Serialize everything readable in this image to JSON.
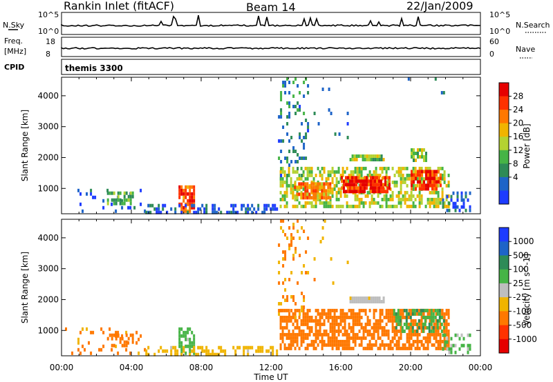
{
  "header": {
    "title": "Rankin Inlet (fitACF)",
    "beam": "Beam 14",
    "date": "22/Jan/2009"
  },
  "status_panel": {
    "nsky_label": "N.Sky",
    "nsearch_label": "N.Search",
    "nsky_ticks": [
      "10^5",
      "10^0"
    ],
    "nsearch_ticks": [
      "10^5",
      "10^0"
    ],
    "freq_label": "Freq.",
    "freq_unit": "[MHz]",
    "freq_ticks": [
      "18",
      "8"
    ],
    "nave_label": "Nave",
    "nave_ticks": [
      "60",
      "0"
    ],
    "cpid_label": "CPID",
    "cpid_value": "themis 3300"
  },
  "chart_data": [
    {
      "type": "heatmap",
      "name": "power",
      "ylabel": "Slant Range [km]",
      "xlabel": "Time UT",
      "x_ticks": [
        "00:00",
        "04:00",
        "08:00",
        "12:00",
        "16:00",
        "20:00",
        "00:00"
      ],
      "xlim_hours": [
        0,
        24
      ],
      "ylim_km": [
        180,
        4600
      ],
      "y_ticks": [
        1000,
        2000,
        3000,
        4000
      ],
      "colorbar": {
        "label": "Power [dB]",
        "ticks": [
          "28",
          "24",
          "20",
          "16",
          "12",
          "8",
          "4"
        ],
        "min": 0,
        "max": 32,
        "colors": [
          "#1e3cff",
          "#1e64c8",
          "#2e8b57",
          "#46b446",
          "#b4d232",
          "#f0b400",
          "#ff7800",
          "#ff3200",
          "#e60000"
        ]
      },
      "regions": [
        {
          "t0": 0.2,
          "t1": 4.8,
          "r0": 200,
          "r1": 1100,
          "dens": 0.1,
          "p": 5
        },
        {
          "t0": 2.6,
          "t1": 4.2,
          "r0": 400,
          "r1": 900,
          "dens": 0.55,
          "p": 12
        },
        {
          "t0": 6.7,
          "t1": 7.6,
          "r0": 200,
          "r1": 1100,
          "dens": 0.8,
          "p": 26
        },
        {
          "t0": 4.8,
          "t1": 12.4,
          "r0": 200,
          "r1": 500,
          "dens": 0.45,
          "p": 4
        },
        {
          "t0": 12.5,
          "t1": 22.3,
          "r0": 400,
          "r1": 1700,
          "dens": 0.55,
          "p": 16
        },
        {
          "t0": 16.0,
          "t1": 18.8,
          "r0": 800,
          "r1": 1400,
          "dens": 0.85,
          "p": 27
        },
        {
          "t0": 20.0,
          "t1": 21.8,
          "r0": 900,
          "r1": 1600,
          "dens": 0.85,
          "p": 27
        },
        {
          "t0": 13.2,
          "t1": 15.5,
          "r0": 600,
          "r1": 1200,
          "dens": 0.7,
          "p": 22
        },
        {
          "t0": 16.5,
          "t1": 18.5,
          "r0": 1900,
          "r1": 2100,
          "dens": 0.9,
          "p": 14
        },
        {
          "t0": 20.0,
          "t1": 21.0,
          "r0": 1900,
          "r1": 2300,
          "dens": 0.6,
          "p": 14
        },
        {
          "t0": 12.4,
          "t1": 14.2,
          "r0": 1400,
          "r1": 4600,
          "dens": 0.18,
          "p": 8
        },
        {
          "t0": 14.2,
          "t1": 16.5,
          "r0": 2500,
          "r1": 4600,
          "dens": 0.04,
          "p": 6
        },
        {
          "t0": 19.0,
          "t1": 22.5,
          "r0": 4000,
          "r1": 4600,
          "dens": 0.02,
          "p": 6
        },
        {
          "t0": 21.8,
          "t1": 23.5,
          "r0": 200,
          "r1": 900,
          "dens": 0.35,
          "p": 5
        }
      ]
    },
    {
      "type": "heatmap",
      "name": "velocity",
      "ylabel": "Slant Range [km]",
      "xlabel": "Time UT",
      "x_ticks": [
        "00:00",
        "04:00",
        "08:00",
        "12:00",
        "16:00",
        "20:00",
        "00:00"
      ],
      "xlim_hours": [
        0,
        24
      ],
      "ylim_km": [
        180,
        4600
      ],
      "y_ticks": [
        1000,
        2000,
        3000,
        4000
      ],
      "colorbar": {
        "label": "Velocity [m s^-1]",
        "ticks": [
          "1000",
          "500",
          "100",
          "25",
          "-25",
          "-100",
          "-500",
          "-1000"
        ],
        "colors": [
          "#e60000",
          "#ff3200",
          "#ff7800",
          "#f0b400",
          "#bebebe",
          "#46b446",
          "#2e8b57",
          "#1e64c8",
          "#1e3cff"
        ]
      },
      "regions": [
        {
          "t0": 0.2,
          "t1": 4.8,
          "r0": 200,
          "r1": 1100,
          "dens": 0.1,
          "v": -150
        },
        {
          "t0": 2.6,
          "t1": 4.2,
          "r0": 400,
          "r1": 900,
          "dens": 0.55,
          "v": -300
        },
        {
          "t0": 6.7,
          "t1": 7.6,
          "r0": 200,
          "r1": 1100,
          "dens": 0.6,
          "v": 60
        },
        {
          "t0": 4.8,
          "t1": 12.4,
          "r0": 200,
          "r1": 500,
          "dens": 0.45,
          "v": -60
        },
        {
          "t0": 12.5,
          "t1": 22.3,
          "r0": 400,
          "r1": 1700,
          "dens": 0.65,
          "v": -300
        },
        {
          "t0": 19.0,
          "t1": 22.0,
          "r0": 900,
          "r1": 1700,
          "dens": 0.5,
          "v": 90
        },
        {
          "t0": 16.5,
          "t1": 18.5,
          "r0": 1900,
          "r1": 2100,
          "dens": 0.9,
          "v": 0
        },
        {
          "t0": 12.4,
          "t1": 14.2,
          "r0": 1400,
          "r1": 4600,
          "dens": 0.18,
          "v": -120
        },
        {
          "t0": 14.2,
          "t1": 16.5,
          "r0": 2500,
          "r1": 4600,
          "dens": 0.04,
          "v": -80
        },
        {
          "t0": 21.8,
          "t1": 23.5,
          "r0": 200,
          "r1": 900,
          "dens": 0.35,
          "v": 40
        }
      ]
    }
  ]
}
